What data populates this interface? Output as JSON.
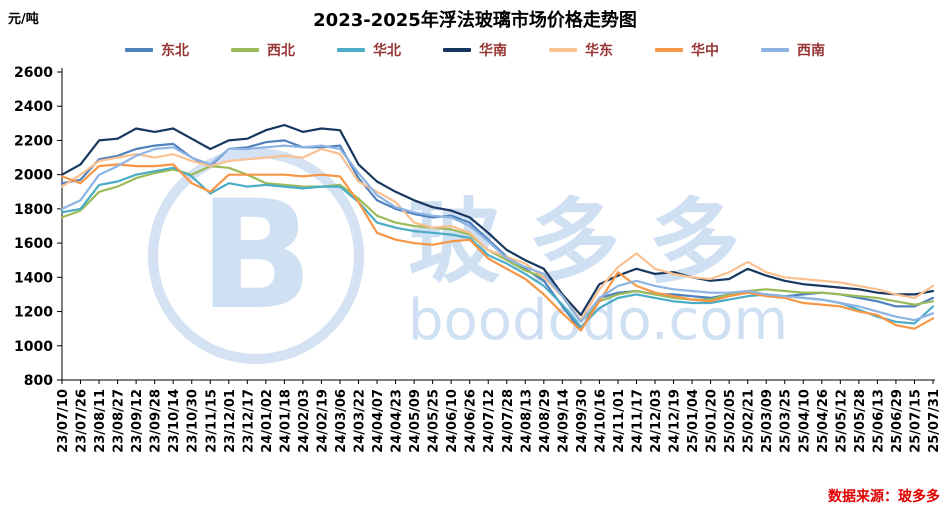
{
  "source": "数据来源：玻多多",
  "watermark": {
    "logo_letter": "B",
    "brand": "玻多多",
    "url": "boododo.com"
  },
  "chart_data": {
    "type": "line",
    "title": "2023-2025年浮法玻璃市场价格走势图",
    "unit_label": "元/吨",
    "xlabel": "",
    "ylabel": "元/吨",
    "ylim": [
      800,
      2600
    ],
    "ytick_step": 200,
    "grid": false,
    "legend_position": "top",
    "categories": [
      "23/07/10",
      "23/07/26",
      "23/08/11",
      "23/08/27",
      "23/09/12",
      "23/09/28",
      "23/10/14",
      "23/10/30",
      "23/11/15",
      "23/12/01",
      "23/12/17",
      "24/01/02",
      "24/01/18",
      "24/02/03",
      "24/02/19",
      "24/03/06",
      "24/03/22",
      "24/04/07",
      "24/04/23",
      "24/05/09",
      "24/05/25",
      "24/06/10",
      "24/06/26",
      "24/07/12",
      "24/07/28",
      "24/08/13",
      "24/08/29",
      "24/09/14",
      "24/09/30",
      "24/10/16",
      "24/11/01",
      "24/11/17",
      "24/12/03",
      "24/12/19",
      "25/01/04",
      "25/01/20",
      "25/02/05",
      "25/02/21",
      "25/03/09",
      "25/03/25",
      "25/04/10",
      "25/04/26",
      "25/05/12",
      "25/05/28",
      "25/06/13",
      "25/06/29",
      "25/07/15",
      "25/07/31"
    ],
    "series": [
      {
        "name": "东北",
        "key": "dongbei",
        "color": "#4F81BD",
        "values": [
          1950,
          1970,
          2090,
          2110,
          2150,
          2170,
          2180,
          2100,
          2050,
          2150,
          2160,
          2190,
          2200,
          2160,
          2160,
          2170,
          1980,
          1850,
          1800,
          1770,
          1750,
          1760,
          1720,
          1620,
          1520,
          1450,
          1380,
          1230,
          1090,
          1280,
          1310,
          1320,
          1300,
          1300,
          1290,
          1280,
          1300,
          1310,
          1300,
          1290,
          1300,
          1310,
          1300,
          1280,
          1260,
          1230,
          1230,
          1280
        ]
      },
      {
        "name": "西北",
        "key": "xibei",
        "color": "#9BBB59",
        "values": [
          1750,
          1790,
          1900,
          1930,
          1980,
          2010,
          2030,
          2000,
          2050,
          2040,
          2000,
          1950,
          1940,
          1930,
          1930,
          1940,
          1860,
          1760,
          1720,
          1700,
          1690,
          1680,
          1650,
          1560,
          1500,
          1440,
          1400,
          1290,
          1140,
          1260,
          1300,
          1320,
          1300,
          1280,
          1270,
          1270,
          1300,
          1320,
          1330,
          1320,
          1310,
          1310,
          1300,
          1290,
          1280,
          1260,
          1240,
          1260
        ]
      },
      {
        "name": "华北",
        "key": "huabei",
        "color": "#4BACC6",
        "values": [
          1780,
          1800,
          1940,
          1960,
          2000,
          2020,
          2040,
          1990,
          1890,
          1950,
          1930,
          1940,
          1930,
          1920,
          1930,
          1930,
          1840,
          1720,
          1690,
          1670,
          1660,
          1650,
          1630,
          1530,
          1480,
          1420,
          1350,
          1240,
          1110,
          1220,
          1280,
          1300,
          1280,
          1260,
          1250,
          1250,
          1270,
          1290,
          1300,
          1290,
          1280,
          1270,
          1250,
          1210,
          1170,
          1140,
          1130,
          1230
        ]
      },
      {
        "name": "华南",
        "key": "huanan",
        "color": "#17375E",
        "values": [
          2000,
          2060,
          2200,
          2210,
          2270,
          2250,
          2270,
          2210,
          2150,
          2200,
          2210,
          2260,
          2290,
          2250,
          2270,
          2260,
          2060,
          1960,
          1900,
          1850,
          1810,
          1790,
          1750,
          1660,
          1560,
          1500,
          1450,
          1300,
          1180,
          1360,
          1410,
          1450,
          1420,
          1430,
          1400,
          1380,
          1390,
          1450,
          1410,
          1380,
          1360,
          1350,
          1340,
          1330,
          1310,
          1300,
          1300,
          1320
        ]
      },
      {
        "name": "华东",
        "key": "huadong",
        "color": "#FAC090",
        "values": [
          1930,
          2000,
          2080,
          2100,
          2120,
          2100,
          2120,
          2080,
          2050,
          2080,
          2090,
          2100,
          2110,
          2100,
          2150,
          2120,
          1960,
          1900,
          1840,
          1720,
          1690,
          1700,
          1660,
          1560,
          1520,
          1480,
          1400,
          1290,
          1150,
          1330,
          1460,
          1540,
          1450,
          1420,
          1400,
          1390,
          1430,
          1490,
          1430,
          1400,
          1390,
          1380,
          1370,
          1350,
          1330,
          1300,
          1280,
          1350
        ]
      },
      {
        "name": "华中",
        "key": "huazhong",
        "color": "#F79646",
        "values": [
          1990,
          1950,
          2050,
          2060,
          2050,
          2050,
          2060,
          1950,
          1900,
          2000,
          2000,
          2000,
          2000,
          1990,
          2000,
          1990,
          1840,
          1660,
          1620,
          1600,
          1590,
          1610,
          1620,
          1510,
          1450,
          1390,
          1300,
          1190,
          1090,
          1260,
          1430,
          1350,
          1310,
          1290,
          1270,
          1260,
          1290,
          1310,
          1290,
          1280,
          1250,
          1240,
          1230,
          1200,
          1180,
          1120,
          1100,
          1160
        ]
      },
      {
        "name": "西南",
        "key": "xinan",
        "color": "#8EB4E3",
        "values": [
          1800,
          1850,
          2000,
          2050,
          2110,
          2150,
          2160,
          2100,
          2060,
          2150,
          2150,
          2160,
          2170,
          2160,
          2170,
          2150,
          2010,
          1880,
          1810,
          1780,
          1760,
          1750,
          1700,
          1610,
          1510,
          1460,
          1420,
          1290,
          1140,
          1280,
          1350,
          1380,
          1350,
          1330,
          1320,
          1310,
          1310,
          1320,
          1300,
          1290,
          1280,
          1270,
          1250,
          1230,
          1200,
          1170,
          1150,
          1190
        ]
      }
    ]
  }
}
